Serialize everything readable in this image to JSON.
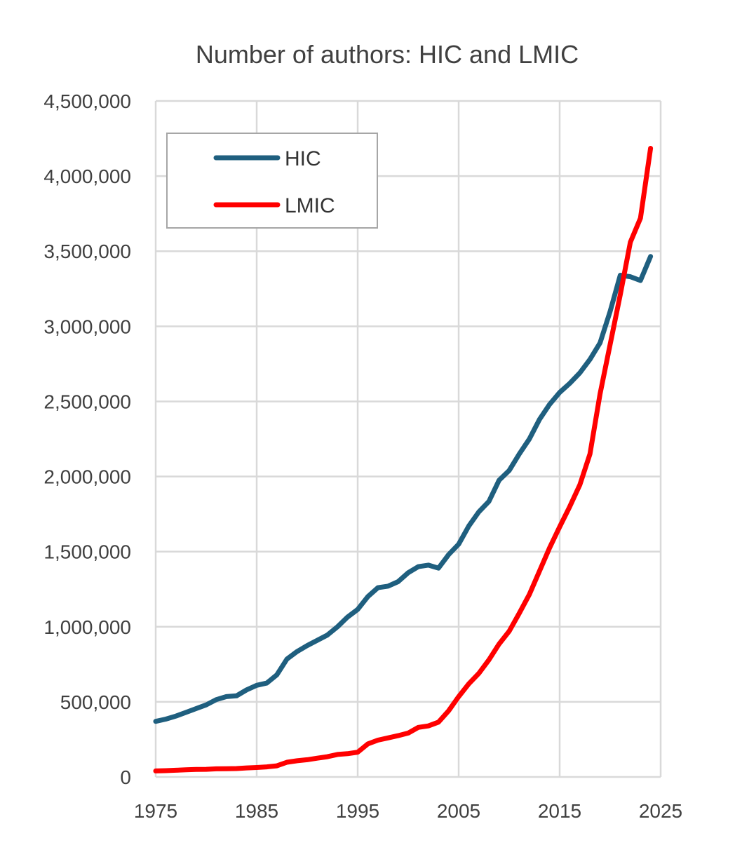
{
  "chart_data": {
    "type": "line",
    "title": "Number of authors: HIC and LMIC",
    "xlabel": "",
    "ylabel": "",
    "xlim": [
      1975,
      2025
    ],
    "ylim": [
      0,
      4500000
    ],
    "x_ticks": [
      1975,
      1985,
      1995,
      2005,
      2015,
      2025
    ],
    "x_tick_labels": [
      "1975",
      "1985",
      "1995",
      "2005",
      "2015",
      "2025"
    ],
    "y_ticks": [
      0,
      500000,
      1000000,
      1500000,
      2000000,
      2500000,
      3000000,
      3500000,
      4000000,
      4500000
    ],
    "y_tick_labels": [
      "0",
      "500,000",
      "1,000,000",
      "1,500,000",
      "2,000,000",
      "2,500,000",
      "3,000,000",
      "3,500,000",
      "4,000,000",
      "4,500,000"
    ],
    "grid": true,
    "legend_position": "top-left",
    "x": [
      1975,
      1976,
      1977,
      1978,
      1979,
      1980,
      1981,
      1982,
      1983,
      1984,
      1985,
      1986,
      1987,
      1988,
      1989,
      1990,
      1991,
      1992,
      1993,
      1994,
      1995,
      1996,
      1997,
      1998,
      1999,
      2000,
      2001,
      2002,
      2003,
      2004,
      2005,
      2006,
      2007,
      2008,
      2009,
      2010,
      2011,
      2012,
      2013,
      2014,
      2015,
      2016,
      2017,
      2018,
      2019,
      2020,
      2021,
      2022,
      2023,
      2024
    ],
    "series": [
      {
        "name": "HIC",
        "color": "#1f5f7f",
        "values": [
          370000,
          385000,
          405000,
          430000,
          455000,
          480000,
          515000,
          535000,
          540000,
          580000,
          610000,
          625000,
          680000,
          785000,
          835000,
          875000,
          910000,
          945000,
          1000000,
          1065000,
          1115000,
          1200000,
          1260000,
          1270000,
          1300000,
          1360000,
          1400000,
          1410000,
          1390000,
          1480000,
          1550000,
          1670000,
          1765000,
          1835000,
          1975000,
          2040000,
          2150000,
          2250000,
          2380000,
          2480000,
          2560000,
          2620000,
          2690000,
          2780000,
          2890000,
          3100000,
          3340000,
          3330000,
          3305000,
          3465000
        ]
      },
      {
        "name": "LMIC",
        "color": "#ff0000",
        "values": [
          40000,
          42000,
          45000,
          48000,
          50000,
          51000,
          54000,
          55000,
          56000,
          60000,
          63000,
          67000,
          74000,
          98000,
          108000,
          115000,
          125000,
          135000,
          150000,
          155000,
          165000,
          220000,
          245000,
          260000,
          275000,
          292000,
          330000,
          340000,
          365000,
          440000,
          535000,
          620000,
          690000,
          780000,
          885000,
          970000,
          1090000,
          1215000,
          1370000,
          1525000,
          1665000,
          1800000,
          1945000,
          2150000,
          2550000,
          2880000,
          3210000,
          3560000,
          3720000,
          4185000
        ]
      }
    ]
  }
}
